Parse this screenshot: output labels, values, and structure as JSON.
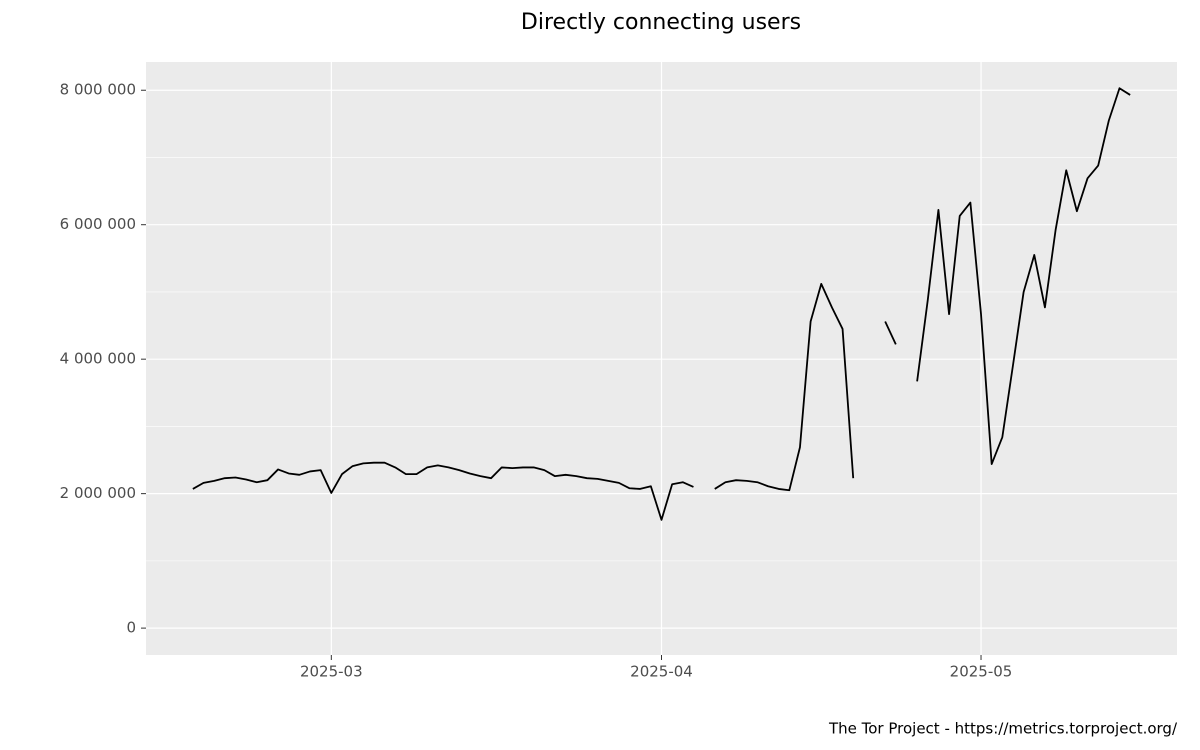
{
  "chart_data": {
    "type": "line",
    "title": "Directly connecting users",
    "caption": "The Tor Project - https://metrics.torproject.org/",
    "categories": [
      null,
      null,
      null,
      null,
      null,
      null,
      null,
      null,
      null,
      null,
      null,
      null,
      null,
      "2025-03",
      null,
      null,
      null,
      null,
      null,
      null,
      null,
      null,
      null,
      null,
      null,
      null,
      null,
      null,
      null,
      null,
      null,
      null,
      null,
      null,
      null,
      null,
      null,
      null,
      null,
      null,
      null,
      null,
      null,
      null,
      "2025-04",
      null,
      null,
      null,
      null,
      null,
      null,
      null,
      null,
      null,
      null,
      null,
      null,
      null,
      null,
      null,
      null,
      null,
      null,
      null,
      null,
      null,
      null,
      null,
      null,
      null,
      null,
      null,
      null,
      null,
      "2025-05",
      null,
      null,
      null,
      null,
      null,
      null,
      null,
      null,
      null,
      null,
      null,
      null,
      null,
      null
    ],
    "series": [
      {
        "name": "users",
        "color": "#000000",
        "values": [
          2070000,
          2160000,
          2190000,
          2230000,
          2240000,
          2210000,
          2170000,
          2200000,
          2360000,
          2300000,
          2280000,
          2330000,
          2350000,
          2010000,
          2290000,
          2410000,
          2450000,
          2460000,
          2460000,
          2390000,
          2290000,
          2290000,
          2390000,
          2420000,
          2390000,
          2350000,
          2300000,
          2260000,
          2230000,
          2390000,
          2380000,
          2390000,
          2390000,
          2350000,
          2260000,
          2280000,
          2260000,
          2230000,
          2220000,
          2190000,
          2160000,
          2080000,
          2070000,
          2110000,
          1610000,
          2140000,
          2170000,
          2100000,
          null,
          2070000,
          2170000,
          2200000,
          2190000,
          2170000,
          2110000,
          2070000,
          2050000,
          2690000,
          4560000,
          5120000,
          4770000,
          4450000,
          2230000,
          null,
          null,
          4560000,
          4220000,
          null,
          3670000,
          4880000,
          6220000,
          4670000,
          6130000,
          6330000,
          4670000,
          2440000,
          2840000,
          3910000,
          5000000,
          5550000,
          4770000,
          5920000,
          6810000,
          6200000,
          6690000,
          6880000,
          7550000,
          8030000,
          7930000
        ]
      }
    ],
    "ylim": [
      -400000,
      8420000
    ],
    "yticks": [
      0,
      {
        "value": 2000000,
        "label": "2 000 000"
      },
      {
        "value": 4000000,
        "label": "4 000 000"
      },
      {
        "value": 6000000,
        "label": "6 000 000"
      },
      {
        "value": 8000000,
        "label": "8 000 000"
      }
    ],
    "yminor": [
      1000000,
      3000000,
      5000000,
      7000000
    ],
    "grid": true
  }
}
